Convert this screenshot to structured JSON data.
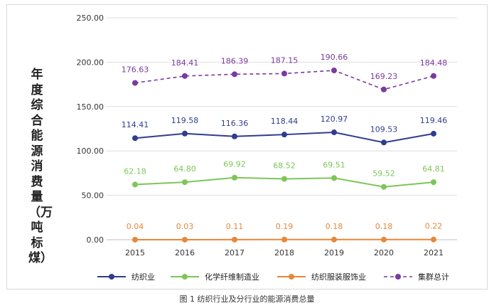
{
  "chart_data": {
    "type": "line",
    "categories": [
      "2015",
      "2016",
      "2017",
      "2018",
      "2019",
      "2020",
      "2021"
    ],
    "ylabel": "年度综合能源消费量（万吨标煤）",
    "ylim": [
      0,
      250
    ],
    "yticks": [
      "0.00",
      "50.00",
      "100.00",
      "150.00",
      "200.00",
      "250.00"
    ],
    "grid": true,
    "legend_position": "bottom",
    "series": [
      {
        "name": "纺织业",
        "color": "#2e3d8f",
        "dash": false,
        "values": [
          114.41,
          119.58,
          116.36,
          118.44,
          120.97,
          109.53,
          119.46
        ],
        "labels": [
          "114.41",
          "119.58",
          "116.36",
          "118.44",
          "120.97",
          "109.53",
          "119.46"
        ]
      },
      {
        "name": "化学纤维制造业",
        "color": "#7dc65a",
        "dash": false,
        "values": [
          62.18,
          64.8,
          69.92,
          68.52,
          69.51,
          59.52,
          64.81
        ],
        "labels": [
          "62.18",
          "64.80",
          "69.92",
          "68.52",
          "69.51",
          "59.52",
          "64.81"
        ]
      },
      {
        "name": "纺织服装服饰业",
        "color": "#e8873a",
        "dash": false,
        "values": [
          0.04,
          0.03,
          0.11,
          0.19,
          0.18,
          0.18,
          0.22
        ],
        "labels": [
          "0.04",
          "0.03",
          "0.11",
          "0.19",
          "0.18",
          "0.18",
          "0.22"
        ]
      },
      {
        "name": "集群总计",
        "color": "#7a3aa0",
        "dash": true,
        "values": [
          176.63,
          184.41,
          186.39,
          187.15,
          190.66,
          169.23,
          184.48
        ],
        "labels": [
          "176.63",
          "184.41",
          "186.39",
          "187.15",
          "190.66",
          "169.23",
          "184.48"
        ]
      }
    ]
  },
  "caption": "图 1 纺织行业及分行业的能源消费总量"
}
